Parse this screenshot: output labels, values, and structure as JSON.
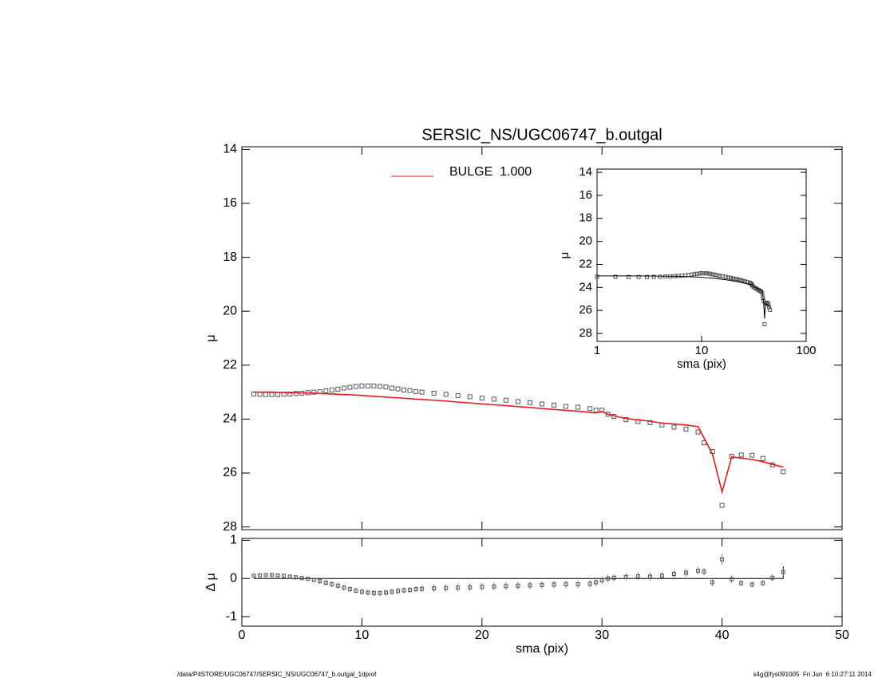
{
  "chart_data": [
    {
      "type": "scatter",
      "title": "SERSIC_NS/UGC06747_b.outgal",
      "ylabel": "μ",
      "xlim": [
        0,
        50
      ],
      "ylim": [
        13.9,
        28.1
      ],
      "y_inverted": true,
      "yticks": [
        14,
        16,
        18,
        20,
        22,
        24,
        26,
        28
      ],
      "legend": "top",
      "x": [
        1.0,
        1.5,
        2.0,
        2.5,
        3.0,
        3.5,
        4.0,
        4.5,
        5.0,
        5.5,
        6.0,
        6.5,
        7.0,
        7.5,
        8.0,
        8.5,
        9.0,
        9.5,
        10.0,
        10.5,
        11.0,
        11.5,
        12.0,
        12.5,
        13.0,
        13.5,
        14.0,
        14.5,
        15.0,
        16.0,
        17.0,
        18.0,
        19.0,
        20.0,
        21.0,
        22.0,
        23.0,
        24.0,
        25.0,
        26.0,
        27.0,
        28.0,
        29.0,
        29.5,
        30.0,
        30.5,
        31.0,
        32.0,
        33.0,
        34.0,
        35.0,
        36.0,
        37.0,
        38.0,
        38.5,
        39.2,
        40.0,
        40.8,
        41.6,
        42.5,
        43.4,
        44.2,
        45.1
      ],
      "series": [
        {
          "color": "#555555",
          "marker": "square",
          "values": [
            23.07,
            23.08,
            23.09,
            23.09,
            23.09,
            23.08,
            23.07,
            23.05,
            23.04,
            23.02,
            23.0,
            22.98,
            22.95,
            22.92,
            22.89,
            22.85,
            22.82,
            22.79,
            22.77,
            22.77,
            22.77,
            22.79,
            22.81,
            22.85,
            22.88,
            22.92,
            22.94,
            22.98,
            23.0,
            23.04,
            23.08,
            23.13,
            23.17,
            23.22,
            23.26,
            23.3,
            23.35,
            23.39,
            23.44,
            23.48,
            23.53,
            23.56,
            23.61,
            23.67,
            23.67,
            23.82,
            23.9,
            24.02,
            24.09,
            24.13,
            24.22,
            24.3,
            24.37,
            24.48,
            24.88,
            25.2,
            27.2,
            25.38,
            25.33,
            25.34,
            25.46,
            25.7,
            25.95
          ]
        },
        {
          "name": "BULGE  1.000",
          "color": "#e41a1c",
          "marker": "line",
          "values": [
            23.0,
            23.0,
            23.0,
            23.0,
            23.01,
            23.01,
            23.02,
            23.02,
            23.03,
            23.03,
            23.04,
            23.05,
            23.06,
            23.07,
            23.08,
            23.09,
            23.1,
            23.11,
            23.12,
            23.14,
            23.15,
            23.17,
            23.18,
            23.2,
            23.21,
            23.23,
            23.24,
            23.26,
            23.27,
            23.3,
            23.33,
            23.37,
            23.4,
            23.44,
            23.47,
            23.5,
            23.54,
            23.57,
            23.61,
            23.64,
            23.68,
            23.71,
            23.75,
            23.77,
            23.72,
            23.82,
            23.88,
            23.98,
            24.03,
            24.08,
            24.15,
            24.18,
            24.22,
            24.28,
            24.7,
            25.3,
            26.7,
            25.4,
            25.45,
            25.5,
            25.58,
            25.68,
            25.78
          ]
        }
      ]
    },
    {
      "type": "scatter",
      "xlabel": "sma (pix)",
      "ylabel": "Δ μ",
      "xlim": [
        0,
        50
      ],
      "xticks": [
        0,
        10,
        20,
        30,
        40,
        50
      ],
      "ylim": [
        -1.25,
        1.05
      ],
      "yticks": [
        -1,
        0,
        1
      ],
      "series": [
        {
          "color": "#555555",
          "marker": "square",
          "values": [
            0.07,
            0.08,
            0.09,
            0.09,
            0.08,
            0.07,
            0.05,
            0.03,
            0.01,
            -0.01,
            -0.04,
            -0.07,
            -0.11,
            -0.15,
            -0.19,
            -0.24,
            -0.28,
            -0.32,
            -0.35,
            -0.37,
            -0.38,
            -0.38,
            -0.37,
            -0.35,
            -0.33,
            -0.31,
            -0.3,
            -0.28,
            -0.27,
            -0.26,
            -0.25,
            -0.24,
            -0.23,
            -0.22,
            -0.21,
            -0.2,
            -0.19,
            -0.18,
            -0.17,
            -0.16,
            -0.15,
            -0.15,
            -0.14,
            -0.1,
            -0.05,
            0.0,
            0.02,
            0.04,
            0.06,
            0.05,
            0.07,
            0.12,
            0.15,
            0.2,
            0.18,
            -0.1,
            0.5,
            -0.02,
            -0.12,
            -0.16,
            -0.12,
            0.02,
            0.17
          ],
          "errors": [
            0.05,
            0.05,
            0.05,
            0.05,
            0.05,
            0.05,
            0.05,
            0.05,
            0.05,
            0.05,
            0.05,
            0.08,
            0.08,
            0.08,
            0.08,
            0.08,
            0.08,
            0.08,
            0.08,
            0.08,
            0.08,
            0.08,
            0.08,
            0.08,
            0.08,
            0.08,
            0.08,
            0.08,
            0.08,
            0.1,
            0.1,
            0.1,
            0.1,
            0.1,
            0.1,
            0.1,
            0.1,
            0.1,
            0.1,
            0.1,
            0.1,
            0.1,
            0.1,
            0.1,
            0.1,
            0.1,
            0.1,
            0.1,
            0.1,
            0.1,
            0.1,
            0.1,
            0.1,
            0.1,
            0.1,
            0.1,
            0.15,
            0.1,
            0.08,
            0.08,
            0.08,
            0.1,
            0.1
          ]
        }
      ]
    },
    {
      "type": "scatter",
      "xlabel": "sma (pix)",
      "ylabel": "μ",
      "xlog": true,
      "xlim": [
        1,
        100
      ],
      "xticks": [
        1,
        10,
        100
      ],
      "ylim": [
        13.72,
        28.69
      ],
      "y_inverted": true,
      "yticks": [
        14,
        16,
        18,
        20,
        22,
        24,
        26,
        28
      ]
    }
  ],
  "footer": {
    "left": "/data/P4STORE/UGC06747/SERSIC_NS/UGC06747_b.outgal_1dprof",
    "right": "s4g@fys091005  Fri Jun  6 10:27:11 2014"
  }
}
